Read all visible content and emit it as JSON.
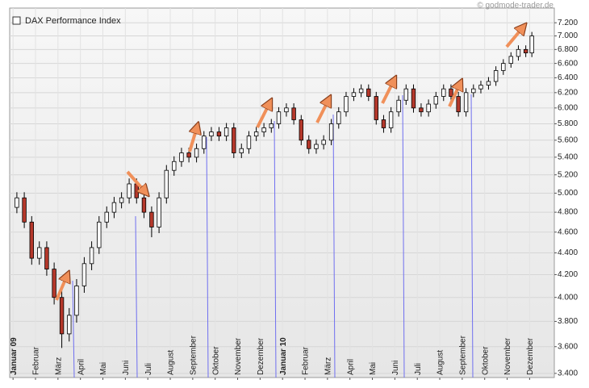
{
  "chart_data": {
    "type": "candlestick",
    "watermark": "© godmode-trader.de",
    "log_scale": true,
    "grid": true,
    "legend": "upper left",
    "xlim": [
      -0.15,
      24.1
    ],
    "ylim": [
      3370,
      7430
    ],
    "yticks": [
      {
        "value": 3400,
        "label": "3.400"
      },
      {
        "value": 3600,
        "label": "3.600"
      },
      {
        "value": 3800,
        "label": "3.800"
      },
      {
        "value": 4000,
        "label": "4.000"
      },
      {
        "value": 4200,
        "label": "4.200"
      },
      {
        "value": 4400,
        "label": "4.400"
      },
      {
        "value": 4600,
        "label": "4.600"
      },
      {
        "value": 4800,
        "label": "4.800"
      },
      {
        "value": 5000,
        "label": "5.000"
      },
      {
        "value": 5200,
        "label": "5.200"
      },
      {
        "value": 5400,
        "label": "5.400"
      },
      {
        "value": 5600,
        "label": "5.600"
      },
      {
        "value": 5800,
        "label": "5.800"
      },
      {
        "value": 6000,
        "label": "6.000"
      },
      {
        "value": 6200,
        "label": "6.200"
      },
      {
        "value": 6400,
        "label": "6.400"
      },
      {
        "value": 6600,
        "label": "6.600"
      },
      {
        "value": 6800,
        "label": "6.800"
      },
      {
        "value": 7000,
        "label": "7.000"
      },
      {
        "value": 7200,
        "label": "7.200"
      }
    ],
    "xticks": [
      {
        "value": 0,
        "label": "Januar 09"
      },
      {
        "value": 1,
        "label": "Februar"
      },
      {
        "value": 2,
        "label": "März"
      },
      {
        "value": 3,
        "label": "April"
      },
      {
        "value": 4,
        "label": "Mai"
      },
      {
        "value": 5,
        "label": "Juni"
      },
      {
        "value": 6,
        "label": "Juli"
      },
      {
        "value": 7,
        "label": "August"
      },
      {
        "value": 8,
        "label": "September"
      },
      {
        "value": 9,
        "label": "Oktober"
      },
      {
        "value": 10,
        "label": "November"
      },
      {
        "value": 11,
        "label": "Dezember"
      },
      {
        "value": 12,
        "label": "Januar 10"
      },
      {
        "value": 13,
        "label": "Februar"
      },
      {
        "value": 14,
        "label": "März"
      },
      {
        "value": 15,
        "label": "April"
      },
      {
        "value": 16,
        "label": "Mai"
      },
      {
        "value": 17,
        "label": "Juni"
      },
      {
        "value": 18,
        "label": "Juli"
      },
      {
        "value": 19,
        "label": "August"
      },
      {
        "value": 20,
        "label": "September"
      },
      {
        "value": 21,
        "label": "Oktober"
      },
      {
        "value": 22,
        "label": "November"
      },
      {
        "value": 23,
        "label": "Dezember"
      }
    ],
    "series": [
      {
        "name": "DAX Performance Index",
        "up_color": "#ffffff",
        "down_color": "#b5382b",
        "x": [
          0.17,
          0.5,
          0.83,
          1.17,
          1.5,
          1.83,
          2.17,
          2.5,
          2.83,
          3.17,
          3.5,
          3.83,
          4.17,
          4.5,
          4.83,
          5.17,
          5.5,
          5.83,
          6.17,
          6.5,
          6.83,
          7.17,
          7.5,
          7.83,
          8.17,
          8.5,
          8.83,
          9.17,
          9.5,
          9.83,
          10.17,
          10.5,
          10.83,
          11.17,
          11.5,
          11.83,
          12.17,
          12.5,
          12.83,
          13.17,
          13.5,
          13.83,
          14.17,
          14.5,
          14.83,
          15.17,
          15.5,
          15.83,
          16.17,
          16.5,
          16.83,
          17.17,
          17.5,
          17.83,
          18.17,
          18.5,
          18.83,
          19.17,
          19.5,
          19.83,
          20.17,
          20.5,
          20.83,
          21.17,
          21.5,
          21.83,
          22.17,
          22.5,
          22.83,
          23.1
        ],
        "open": [
          4850,
          4950,
          4700,
          4350,
          4450,
          4250,
          4000,
          3700,
          3850,
          4100,
          4300,
          4450,
          4700,
          4800,
          4900,
          4950,
          5100,
          4950,
          4800,
          4650,
          4950,
          5250,
          5350,
          5450,
          5400,
          5500,
          5650,
          5700,
          5650,
          5750,
          5450,
          5500,
          5650,
          5700,
          5750,
          5800,
          5950,
          6000,
          5850,
          5600,
          5500,
          5550,
          5600,
          5800,
          5950,
          6150,
          6200,
          6250,
          6150,
          5850,
          5750,
          5950,
          6100,
          6250,
          6000,
          5950,
          6050,
          6150,
          6250,
          6150,
          5950,
          6200,
          6250,
          6300,
          6350,
          6500,
          6600,
          6700,
          6800,
          6750
        ],
        "high": [
          5010,
          5010,
          4760,
          4510,
          4510,
          4310,
          4060,
          3910,
          4160,
          4360,
          4510,
          4760,
          4860,
          4960,
          5010,
          5160,
          5160,
          5010,
          4860,
          5010,
          5310,
          5410,
          5510,
          5510,
          5560,
          5710,
          5760,
          5760,
          5810,
          5810,
          5560,
          5710,
          5760,
          5810,
          5860,
          6010,
          6060,
          6060,
          5910,
          5660,
          5610,
          5660,
          5860,
          6010,
          6210,
          6260,
          6310,
          6310,
          6210,
          5910,
          6010,
          6160,
          6310,
          6310,
          6060,
          6110,
          6210,
          6310,
          6310,
          6210,
          6260,
          6310,
          6360,
          6410,
          6560,
          6660,
          6760,
          6860,
          6860,
          7060
        ],
        "low": [
          4790,
          4640,
          4290,
          4290,
          4190,
          3940,
          3590,
          3640,
          3790,
          4040,
          4240,
          4390,
          4640,
          4740,
          4840,
          4890,
          4890,
          4740,
          4550,
          4590,
          4890,
          5190,
          5290,
          5340,
          5340,
          5440,
          5590,
          5590,
          5590,
          5390,
          5390,
          5440,
          5590,
          5640,
          5690,
          5740,
          5890,
          5790,
          5540,
          5440,
          5440,
          5490,
          5540,
          5740,
          5890,
          6090,
          6140,
          6090,
          5790,
          5690,
          5690,
          5890,
          6040,
          5940,
          5890,
          5890,
          5990,
          6090,
          6090,
          5890,
          5890,
          6140,
          6190,
          6240,
          6290,
          6440,
          6540,
          6640,
          6690,
          6690
        ],
        "close": [
          4950,
          4700,
          4350,
          4450,
          4250,
          4000,
          3700,
          3850,
          4100,
          4300,
          4450,
          4700,
          4800,
          4900,
          4950,
          5100,
          4950,
          4800,
          4650,
          4950,
          5250,
          5350,
          5450,
          5400,
          5500,
          5650,
          5700,
          5650,
          5750,
          5450,
          5500,
          5650,
          5700,
          5750,
          5800,
          5950,
          6000,
          5850,
          5600,
          5500,
          5550,
          5600,
          5800,
          5950,
          6150,
          6200,
          6250,
          6150,
          5850,
          5750,
          5950,
          6100,
          6250,
          6000,
          5950,
          6050,
          6150,
          6250,
          6150,
          5950,
          6200,
          6250,
          6300,
          6350,
          6500,
          6600,
          6700,
          6800,
          6750,
          7000
        ]
      }
    ]
  }
}
